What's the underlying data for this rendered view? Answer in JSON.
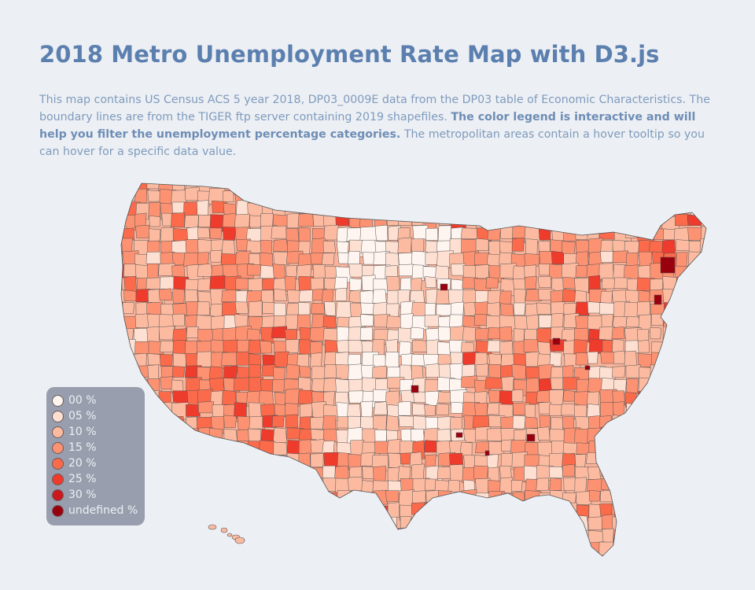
{
  "page": {
    "title": "2018 Metro Unemployment Rate Map with D3.js",
    "description_1": "This map contains US Census ACS 5 year 2018, DP03_0009E data from the DP03 table of Economic Characteristics. The boundary lines are from the TIGER ftp server containing 2019 shapefiles. ",
    "description_bold": "The color legend is interactive and will help you filter the unemployment percentage categories.",
    "description_2": " The metropolitan areas contain a hover tooltip so you can hover for a specific data value."
  },
  "legend": {
    "items": [
      {
        "label": "00 %",
        "color": "#fff5f0"
      },
      {
        "label": "05 %",
        "color": "#fee0d2"
      },
      {
        "label": "10 %",
        "color": "#fcbba1"
      },
      {
        "label": "15 %",
        "color": "#fc9272"
      },
      {
        "label": "20 %",
        "color": "#fb6a4a"
      },
      {
        "label": "25 %",
        "color": "#ef3b2c"
      },
      {
        "label": "30 %",
        "color": "#cb181d"
      },
      {
        "label": "undefined %",
        "color": "#99000d"
      }
    ]
  },
  "map": {
    "stroke_color": "#555555",
    "land_base_color": "#f9b39a",
    "background": "#eceff4"
  }
}
